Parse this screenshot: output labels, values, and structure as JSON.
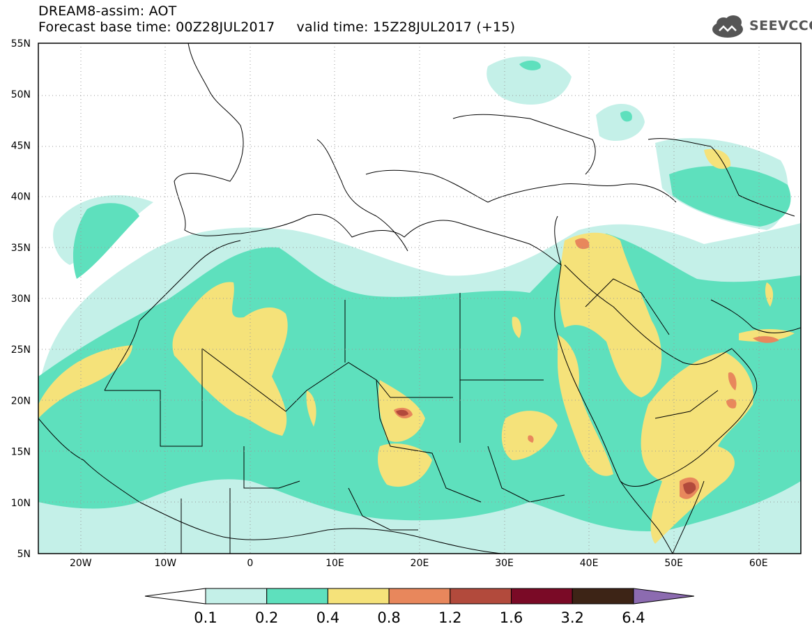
{
  "title": {
    "line1": "DREAM8-assim: AOT",
    "line2": "Forecast base time: 00Z28JUL2017     valid time: 15Z28JUL2017 (+15)"
  },
  "logo": {
    "text": "SEEVCCC",
    "icon": "cloud-icon"
  },
  "map": {
    "lat_range": [
      5,
      55
    ],
    "lon_range": [
      -25,
      65
    ],
    "lat_ticks": [
      "55N",
      "50N",
      "45N",
      "40N",
      "35N",
      "30N",
      "25N",
      "20N",
      "15N",
      "10N",
      "5N"
    ],
    "lon_ticks": [
      "20W",
      "10W",
      "0",
      "10E",
      "20E",
      "30E",
      "40E",
      "50E",
      "60E"
    ],
    "grid": true
  },
  "colorbar": {
    "labels": [
      "0.1",
      "0.2",
      "0.4",
      "0.8",
      "1.2",
      "1.6",
      "3.2",
      "6.4"
    ],
    "colors": [
      "#ffffff",
      "#c4f0e8",
      "#5ee0bd",
      "#f5e27a",
      "#e8875c",
      "#b24a3c",
      "#7a0a26",
      "#3d2416",
      "#8c6bb0"
    ]
  }
}
